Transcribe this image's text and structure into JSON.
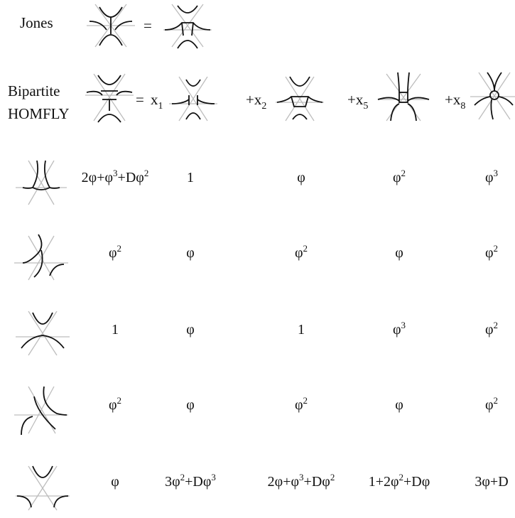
{
  "header": {
    "jones_label": "Jones",
    "equals": "=",
    "bipartite_line1": "Bipartite",
    "bipartite_line2": "HOMFLY",
    "terms": [
      {
        "prefix": "x",
        "sub": "1"
      },
      {
        "prefix": "+x",
        "sub": "2"
      },
      {
        "prefix": "+x",
        "sub": "5"
      },
      {
        "prefix": "+x",
        "sub": "8"
      }
    ]
  },
  "rows": [
    {
      "cells": [
        [
          {
            "t": "2φ+φ"
          },
          {
            "s": "3"
          },
          {
            "t": "+Dφ"
          },
          {
            "s": "2"
          }
        ],
        [
          {
            "t": "1"
          }
        ],
        [
          {
            "t": "φ"
          }
        ],
        [
          {
            "t": "φ"
          },
          {
            "s": "2"
          }
        ],
        [
          {
            "t": "φ"
          },
          {
            "s": "3"
          }
        ]
      ]
    },
    {
      "cells": [
        [
          {
            "t": "φ"
          },
          {
            "s": "2"
          }
        ],
        [
          {
            "t": "φ"
          }
        ],
        [
          {
            "t": "φ"
          },
          {
            "s": "2"
          }
        ],
        [
          {
            "t": "φ"
          }
        ],
        [
          {
            "t": "φ"
          },
          {
            "s": "2"
          }
        ]
      ]
    },
    {
      "cells": [
        [
          {
            "t": "1"
          }
        ],
        [
          {
            "t": "φ"
          }
        ],
        [
          {
            "t": "1"
          }
        ],
        [
          {
            "t": "φ"
          },
          {
            "s": "3"
          }
        ],
        [
          {
            "t": "φ"
          },
          {
            "s": "2"
          }
        ]
      ]
    },
    {
      "cells": [
        [
          {
            "t": "φ"
          },
          {
            "s": "2"
          }
        ],
        [
          {
            "t": "φ"
          }
        ],
        [
          {
            "t": "φ"
          },
          {
            "s": "2"
          }
        ],
        [
          {
            "t": "φ"
          }
        ],
        [
          {
            "t": "φ"
          },
          {
            "s": "2"
          }
        ]
      ]
    },
    {
      "cells": [
        [
          {
            "t": "φ"
          }
        ],
        [
          {
            "t": "3φ"
          },
          {
            "s": "2"
          },
          {
            "t": "+Dφ"
          },
          {
            "s": "3"
          }
        ],
        [
          {
            "t": "2φ+φ"
          },
          {
            "s": "3"
          },
          {
            "t": "+Dφ"
          },
          {
            "s": "2"
          }
        ],
        [
          {
            "t": "1+2φ"
          },
          {
            "s": "2"
          },
          {
            "t": "+Dφ"
          }
        ],
        [
          {
            "t": "3φ+D"
          }
        ]
      ]
    }
  ]
}
